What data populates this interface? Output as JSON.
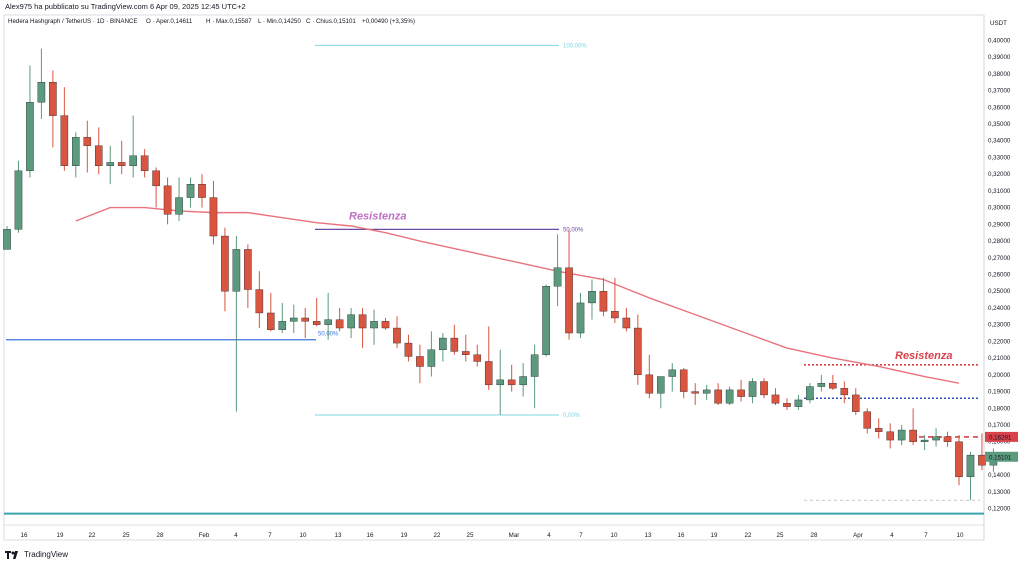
{
  "header": {
    "published_by": "Alex975 ha pubblicato su TradingView.com 6 Apr 09, 2025 12:45 UTC+2"
  },
  "legend": {
    "symbol": "Hedera Hashgraph / TetherUS · 1D · BINANCE",
    "open": "O · Aper.0,14611",
    "high": "H · Max.0,15587",
    "low": "L · Min.0,14250",
    "close": "C · Chius.0,15101",
    "change": "+0,00490 (+3,35%)"
  },
  "footer": {
    "brand": "TradingView"
  },
  "colors": {
    "up": "#5b9a7d",
    "down": "#d9553f",
    "ma": "#e8737e",
    "annotation": "#c06fc5",
    "annotation_red": "#d9414b",
    "support_blue": "#3b76e0",
    "fib_cyan": "#7fd4e0",
    "fib_purple": "#6a4ba0",
    "dotted_blue": "#2f55b8",
    "teal_line": "#3aa3b0"
  },
  "chart_data": {
    "type": "candlestick",
    "price_axis": {
      "currency": "USDT",
      "ylim": [
        0.115,
        0.405
      ],
      "ticks": [
        "0,40000",
        "0,39000",
        "0,38000",
        "0,37000",
        "0,36000",
        "0,35000",
        "0,34000",
        "0,33000",
        "0,32000",
        "0,31000",
        "0,30000",
        "0,29000",
        "0,28000",
        "0,27000",
        "0,26000",
        "0,25000",
        "0,24000",
        "0,23000",
        "0,22000",
        "0,21000",
        "0,20000",
        "0,19000",
        "0,18000",
        "0,17000",
        "0,16000",
        "0,15000",
        "0,14000",
        "0,13000",
        "0,12000"
      ],
      "last_price_label": "0,15101",
      "resistance_price_label": "0,16291"
    },
    "time_axis": {
      "labels": [
        "16",
        "19",
        "22",
        "25",
        "28",
        "Feb",
        "4",
        "7",
        "10",
        "13",
        "16",
        "19",
        "22",
        "25",
        "Mar",
        "4",
        "7",
        "10",
        "13",
        "16",
        "19",
        "22",
        "25",
        "28",
        "Apr",
        "4",
        "7",
        "10"
      ]
    },
    "candles": [
      {
        "o": 0.275,
        "h": 0.289,
        "l": 0.275,
        "c": 0.287
      },
      {
        "o": 0.287,
        "h": 0.328,
        "l": 0.285,
        "c": 0.322
      },
      {
        "o": 0.322,
        "h": 0.385,
        "l": 0.318,
        "c": 0.363
      },
      {
        "o": 0.363,
        "h": 0.395,
        "l": 0.353,
        "c": 0.375
      },
      {
        "o": 0.375,
        "h": 0.382,
        "l": 0.336,
        "c": 0.355
      },
      {
        "o": 0.355,
        "h": 0.372,
        "l": 0.322,
        "c": 0.325
      },
      {
        "o": 0.325,
        "h": 0.345,
        "l": 0.318,
        "c": 0.342
      },
      {
        "o": 0.342,
        "h": 0.352,
        "l": 0.321,
        "c": 0.337
      },
      {
        "o": 0.337,
        "h": 0.348,
        "l": 0.32,
        "c": 0.325
      },
      {
        "o": 0.325,
        "h": 0.337,
        "l": 0.314,
        "c": 0.327
      },
      {
        "o": 0.327,
        "h": 0.34,
        "l": 0.32,
        "c": 0.325
      },
      {
        "o": 0.325,
        "h": 0.355,
        "l": 0.318,
        "c": 0.331
      },
      {
        "o": 0.331,
        "h": 0.335,
        "l": 0.318,
        "c": 0.322
      },
      {
        "o": 0.322,
        "h": 0.324,
        "l": 0.3,
        "c": 0.313
      },
      {
        "o": 0.313,
        "h": 0.318,
        "l": 0.29,
        "c": 0.296
      },
      {
        "o": 0.296,
        "h": 0.318,
        "l": 0.292,
        "c": 0.306
      },
      {
        "o": 0.306,
        "h": 0.318,
        "l": 0.3,
        "c": 0.314
      },
      {
        "o": 0.314,
        "h": 0.32,
        "l": 0.3,
        "c": 0.306
      },
      {
        "o": 0.306,
        "h": 0.316,
        "l": 0.278,
        "c": 0.283
      },
      {
        "o": 0.283,
        "h": 0.288,
        "l": 0.238,
        "c": 0.25
      },
      {
        "o": 0.25,
        "h": 0.283,
        "l": 0.178,
        "c": 0.275
      },
      {
        "o": 0.275,
        "h": 0.278,
        "l": 0.24,
        "c": 0.251
      },
      {
        "o": 0.251,
        "h": 0.262,
        "l": 0.228,
        "c": 0.237
      },
      {
        "o": 0.237,
        "h": 0.249,
        "l": 0.226,
        "c": 0.227
      },
      {
        "o": 0.227,
        "h": 0.243,
        "l": 0.225,
        "c": 0.232
      },
      {
        "o": 0.232,
        "h": 0.242,
        "l": 0.225,
        "c": 0.234
      },
      {
        "o": 0.234,
        "h": 0.24,
        "l": 0.222,
        "c": 0.232
      },
      {
        "o": 0.232,
        "h": 0.246,
        "l": 0.229,
        "c": 0.23
      },
      {
        "o": 0.23,
        "h": 0.249,
        "l": 0.221,
        "c": 0.233
      },
      {
        "o": 0.233,
        "h": 0.24,
        "l": 0.226,
        "c": 0.228
      },
      {
        "o": 0.228,
        "h": 0.24,
        "l": 0.222,
        "c": 0.236
      },
      {
        "o": 0.236,
        "h": 0.24,
        "l": 0.216,
        "c": 0.228
      },
      {
        "o": 0.228,
        "h": 0.239,
        "l": 0.218,
        "c": 0.232
      },
      {
        "o": 0.232,
        "h": 0.234,
        "l": 0.227,
        "c": 0.228
      },
      {
        "o": 0.228,
        "h": 0.235,
        "l": 0.216,
        "c": 0.219
      },
      {
        "o": 0.219,
        "h": 0.224,
        "l": 0.208,
        "c": 0.211
      },
      {
        "o": 0.211,
        "h": 0.218,
        "l": 0.195,
        "c": 0.205
      },
      {
        "o": 0.205,
        "h": 0.226,
        "l": 0.199,
        "c": 0.215
      },
      {
        "o": 0.215,
        "h": 0.225,
        "l": 0.208,
        "c": 0.222
      },
      {
        "o": 0.222,
        "h": 0.23,
        "l": 0.212,
        "c": 0.214
      },
      {
        "o": 0.214,
        "h": 0.224,
        "l": 0.208,
        "c": 0.212
      },
      {
        "o": 0.212,
        "h": 0.218,
        "l": 0.205,
        "c": 0.208
      },
      {
        "o": 0.208,
        "h": 0.229,
        "l": 0.191,
        "c": 0.194
      },
      {
        "o": 0.194,
        "h": 0.215,
        "l": 0.176,
        "c": 0.197
      },
      {
        "o": 0.197,
        "h": 0.206,
        "l": 0.19,
        "c": 0.194
      },
      {
        "o": 0.194,
        "h": 0.207,
        "l": 0.187,
        "c": 0.199
      },
      {
        "o": 0.199,
        "h": 0.218,
        "l": 0.18,
        "c": 0.212
      },
      {
        "o": 0.212,
        "h": 0.254,
        "l": 0.211,
        "c": 0.253
      },
      {
        "o": 0.253,
        "h": 0.284,
        "l": 0.241,
        "c": 0.264
      },
      {
        "o": 0.264,
        "h": 0.287,
        "l": 0.221,
        "c": 0.225
      },
      {
        "o": 0.225,
        "h": 0.249,
        "l": 0.222,
        "c": 0.243
      },
      {
        "o": 0.243,
        "h": 0.257,
        "l": 0.233,
        "c": 0.25
      },
      {
        "o": 0.25,
        "h": 0.258,
        "l": 0.235,
        "c": 0.238
      },
      {
        "o": 0.238,
        "h": 0.258,
        "l": 0.231,
        "c": 0.234
      },
      {
        "o": 0.234,
        "h": 0.24,
        "l": 0.226,
        "c": 0.228
      },
      {
        "o": 0.228,
        "h": 0.236,
        "l": 0.194,
        "c": 0.2
      },
      {
        "o": 0.2,
        "h": 0.212,
        "l": 0.186,
        "c": 0.189
      },
      {
        "o": 0.189,
        "h": 0.198,
        "l": 0.18,
        "c": 0.199
      },
      {
        "o": 0.199,
        "h": 0.207,
        "l": 0.19,
        "c": 0.203
      },
      {
        "o": 0.203,
        "h": 0.204,
        "l": 0.186,
        "c": 0.19
      },
      {
        "o": 0.19,
        "h": 0.195,
        "l": 0.182,
        "c": 0.189
      },
      {
        "o": 0.189,
        "h": 0.194,
        "l": 0.185,
        "c": 0.191
      },
      {
        "o": 0.191,
        "h": 0.195,
        "l": 0.182,
        "c": 0.183
      },
      {
        "o": 0.183,
        "h": 0.193,
        "l": 0.182,
        "c": 0.191
      },
      {
        "o": 0.191,
        "h": 0.197,
        "l": 0.184,
        "c": 0.187
      },
      {
        "o": 0.187,
        "h": 0.198,
        "l": 0.183,
        "c": 0.196
      },
      {
        "o": 0.196,
        "h": 0.198,
        "l": 0.186,
        "c": 0.188
      },
      {
        "o": 0.188,
        "h": 0.192,
        "l": 0.182,
        "c": 0.183
      },
      {
        "o": 0.183,
        "h": 0.186,
        "l": 0.179,
        "c": 0.181
      },
      {
        "o": 0.181,
        "h": 0.188,
        "l": 0.179,
        "c": 0.185
      },
      {
        "o": 0.185,
        "h": 0.195,
        "l": 0.183,
        "c": 0.193
      },
      {
        "o": 0.193,
        "h": 0.2,
        "l": 0.19,
        "c": 0.195
      },
      {
        "o": 0.195,
        "h": 0.2,
        "l": 0.191,
        "c": 0.192
      },
      {
        "o": 0.192,
        "h": 0.196,
        "l": 0.183,
        "c": 0.188
      },
      {
        "o": 0.188,
        "h": 0.192,
        "l": 0.176,
        "c": 0.178
      },
      {
        "o": 0.178,
        "h": 0.18,
        "l": 0.165,
        "c": 0.168
      },
      {
        "o": 0.168,
        "h": 0.174,
        "l": 0.162,
        "c": 0.166
      },
      {
        "o": 0.166,
        "h": 0.171,
        "l": 0.156,
        "c": 0.161
      },
      {
        "o": 0.161,
        "h": 0.17,
        "l": 0.158,
        "c": 0.167
      },
      {
        "o": 0.167,
        "h": 0.18,
        "l": 0.158,
        "c": 0.16
      },
      {
        "o": 0.16,
        "h": 0.164,
        "l": 0.155,
        "c": 0.161
      },
      {
        "o": 0.161,
        "h": 0.168,
        "l": 0.157,
        "c": 0.163
      },
      {
        "o": 0.163,
        "h": 0.166,
        "l": 0.157,
        "c": 0.16
      },
      {
        "o": 0.16,
        "h": 0.164,
        "l": 0.134,
        "c": 0.139
      },
      {
        "o": 0.139,
        "h": 0.154,
        "l": 0.125,
        "c": 0.152
      },
      {
        "o": 0.152,
        "h": 0.165,
        "l": 0.143,
        "c": 0.146
      },
      {
        "o": 0.146,
        "h": 0.156,
        "l": 0.142,
        "c": 0.151
      }
    ],
    "moving_average": [
      [
        6,
        0.292
      ],
      [
        9,
        0.3
      ],
      [
        12,
        0.3
      ],
      [
        15,
        0.298
      ],
      [
        18,
        0.297
      ],
      [
        21,
        0.297
      ],
      [
        24,
        0.294
      ],
      [
        27,
        0.291
      ],
      [
        30,
        0.289
      ],
      [
        33,
        0.285
      ],
      [
        36,
        0.28
      ],
      [
        40,
        0.274
      ],
      [
        44,
        0.268
      ],
      [
        48,
        0.262
      ],
      [
        52,
        0.257
      ],
      [
        56,
        0.246
      ],
      [
        60,
        0.236
      ],
      [
        64,
        0.226
      ],
      [
        68,
        0.216
      ],
      [
        72,
        0.21
      ],
      [
        76,
        0.205
      ],
      [
        80,
        0.199
      ],
      [
        83,
        0.195
      ]
    ],
    "fib_levels": [
      {
        "label": "100,00%",
        "price": 0.397
      },
      {
        "label": "50,00%",
        "price": 0.287
      },
      {
        "label": "0,00%",
        "price": 0.176
      }
    ],
    "support_line": {
      "price": 0.221,
      "label": "50,00%"
    },
    "annotations": [
      {
        "text": "Resistenza",
        "price": 0.287
      },
      {
        "text": "Resistenza",
        "price": 0.206
      }
    ],
    "dotted_levels": [
      {
        "price": 0.206,
        "color_key": "annotation_red"
      },
      {
        "price": 0.186,
        "color_key": "dotted_blue"
      },
      {
        "price": 0.1629,
        "color_key": "annotation_red"
      }
    ],
    "bottom_line_price": 0.117
  }
}
